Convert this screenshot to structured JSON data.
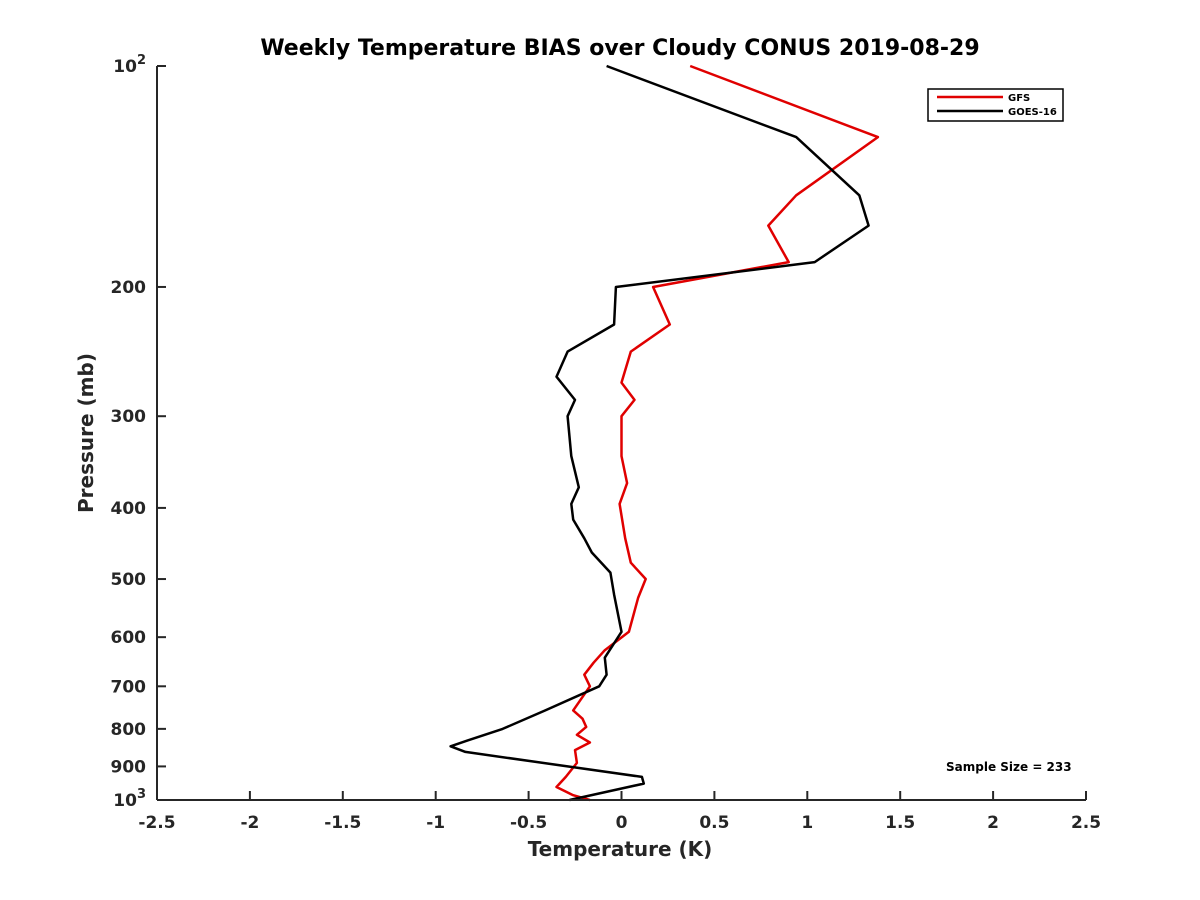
{
  "chart_data": {
    "type": "line",
    "title": "Weekly Temperature BIAS over Cloudy CONUS 2019-08-29",
    "xlabel": "Temperature (K)",
    "ylabel": "Pressure (mb)",
    "xlim": [
      -2.5,
      2.5
    ],
    "ylim": [
      100,
      1000
    ],
    "y_scale": "log",
    "y_reversed": true,
    "x_ticks": [
      -2.5,
      -2,
      -1.5,
      -1,
      -0.5,
      0,
      0.5,
      1,
      1.5,
      2,
      2.5
    ],
    "x_tick_labels": [
      "-2.5",
      "-2",
      "-1.5",
      "-1",
      "-0.5",
      "0",
      "0.5",
      "1",
      "1.5",
      "2",
      "2.5"
    ],
    "y_ticks": [
      {
        "value": 100,
        "base": "10",
        "exp": "2"
      },
      {
        "value": 200,
        "label": "200"
      },
      {
        "value": 300,
        "label": "300"
      },
      {
        "value": 400,
        "label": "400"
      },
      {
        "value": 500,
        "label": "500"
      },
      {
        "value": 600,
        "label": "600"
      },
      {
        "value": 700,
        "label": "700"
      },
      {
        "value": 800,
        "label": "800"
      },
      {
        "value": 900,
        "label": "900"
      },
      {
        "value": 1000,
        "base": "10",
        "exp": "3"
      }
    ],
    "grid": false,
    "legend_position": "top-right",
    "annotation": "Sample Size = 233",
    "series": [
      {
        "name": "GFS",
        "color": "#e00000",
        "points": [
          [
            0.37,
            100
          ],
          [
            1.38,
            125
          ],
          [
            0.94,
            150
          ],
          [
            0.79,
            165
          ],
          [
            0.9,
            185
          ],
          [
            0.17,
            200
          ],
          [
            0.26,
            225
          ],
          [
            0.05,
            245
          ],
          [
            0.0,
            270
          ],
          [
            0.07,
            285
          ],
          [
            0.0,
            300
          ],
          [
            0.0,
            340
          ],
          [
            0.03,
            370
          ],
          [
            -0.01,
            395
          ],
          [
            0.02,
            440
          ],
          [
            0.05,
            475
          ],
          [
            0.13,
            500
          ],
          [
            0.09,
            530
          ],
          [
            0.04,
            590
          ],
          [
            -0.09,
            625
          ],
          [
            -0.15,
            650
          ],
          [
            -0.2,
            675
          ],
          [
            -0.17,
            700
          ],
          [
            -0.26,
            755
          ],
          [
            -0.21,
            775
          ],
          [
            -0.19,
            795
          ],
          [
            -0.24,
            815
          ],
          [
            -0.17,
            835
          ],
          [
            -0.25,
            855
          ],
          [
            -0.24,
            890
          ],
          [
            -0.3,
            930
          ],
          [
            -0.35,
            960
          ],
          [
            -0.26,
            985
          ],
          [
            -0.17,
            1000
          ]
        ]
      },
      {
        "name": "GOES-16",
        "color": "#000000",
        "points": [
          [
            -0.08,
            100
          ],
          [
            0.94,
            125
          ],
          [
            1.28,
            150
          ],
          [
            1.33,
            165
          ],
          [
            1.04,
            185
          ],
          [
            -0.03,
            200
          ],
          [
            -0.04,
            225
          ],
          [
            -0.29,
            245
          ],
          [
            -0.35,
            265
          ],
          [
            -0.25,
            285
          ],
          [
            -0.29,
            300
          ],
          [
            -0.27,
            340
          ],
          [
            -0.23,
            375
          ],
          [
            -0.27,
            395
          ],
          [
            -0.26,
            415
          ],
          [
            -0.2,
            440
          ],
          [
            -0.16,
            460
          ],
          [
            -0.06,
            490
          ],
          [
            -0.04,
            525
          ],
          [
            0.0,
            590
          ],
          [
            -0.09,
            640
          ],
          [
            -0.08,
            675
          ],
          [
            -0.12,
            700
          ],
          [
            -0.41,
            755
          ],
          [
            -0.64,
            800
          ],
          [
            -0.83,
            830
          ],
          [
            -0.92,
            845
          ],
          [
            -0.84,
            860
          ],
          [
            0.11,
            930
          ],
          [
            0.12,
            950
          ],
          [
            -0.28,
            1000
          ]
        ]
      }
    ]
  }
}
